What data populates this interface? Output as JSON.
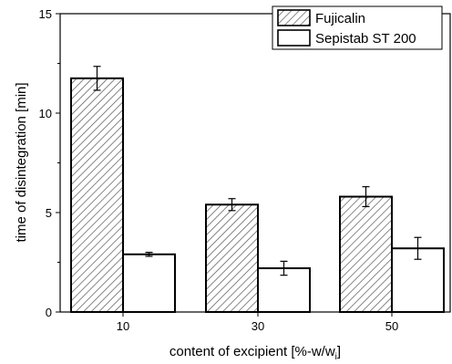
{
  "chart_data": {
    "type": "bar",
    "categories": [
      "10",
      "30",
      "50"
    ],
    "series": [
      {
        "name": "Fujicalin",
        "values": [
          11.75,
          5.4,
          5.8
        ],
        "errors": [
          0.6,
          0.3,
          0.5
        ],
        "fill": "hatched",
        "color": "#000000"
      },
      {
        "name": "Sepistab ST 200",
        "values": [
          2.9,
          2.2,
          3.2
        ],
        "errors": [
          0.1,
          0.35,
          0.55
        ],
        "fill": "white",
        "color": "#000000"
      }
    ],
    "xlabel": "content of excipient [%-w/w",
    "xlabel_sub": "i",
    "xlabel_suffix": "]",
    "ylabel": "time of disintegration [min]",
    "ylim": [
      0,
      15
    ],
    "yticks": [
      "0",
      "5",
      "10",
      "15"
    ],
    "grid": false,
    "legend_position": "top-right"
  }
}
